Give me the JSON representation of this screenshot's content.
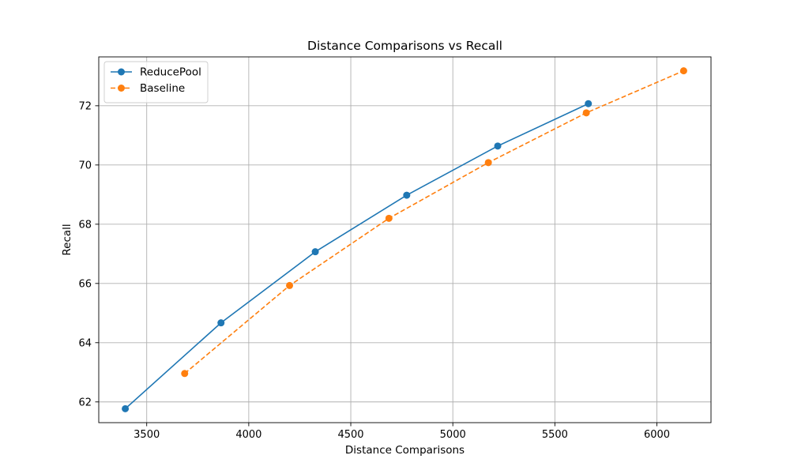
{
  "chart_data": {
    "type": "line",
    "title": "Distance Comparisons vs Recall",
    "xlabel": "Distance Comparisons",
    "ylabel": "Recall",
    "xlim": [
      3265,
      6265
    ],
    "ylim": [
      61.3,
      73.65
    ],
    "xticks": [
      3500,
      4000,
      4500,
      5000,
      5500,
      6000
    ],
    "yticks": [
      62,
      64,
      66,
      68,
      70,
      72
    ],
    "xtick_labels": [
      "3500",
      "4000",
      "4500",
      "5000",
      "5500",
      "6000"
    ],
    "ytick_labels": [
      "62",
      "64",
      "66",
      "68",
      "70",
      "72"
    ],
    "grid": true,
    "legend_position": "top-left",
    "series": [
      {
        "name": "ReducePool",
        "color": "#1f77b4",
        "linestyle": "solid",
        "marker": "circle",
        "x": [
          3395,
          3864,
          4326,
          4774,
          5220,
          5664
        ],
        "y": [
          61.77,
          64.67,
          67.07,
          68.98,
          70.64,
          72.07
        ]
      },
      {
        "name": "Baseline",
        "color": "#ff7f0e",
        "linestyle": "dashed",
        "marker": "circle",
        "x": [
          3686,
          4200,
          4687,
          5174,
          5654,
          6131
        ],
        "y": [
          62.96,
          65.93,
          68.2,
          70.08,
          71.76,
          73.18
        ]
      }
    ]
  }
}
